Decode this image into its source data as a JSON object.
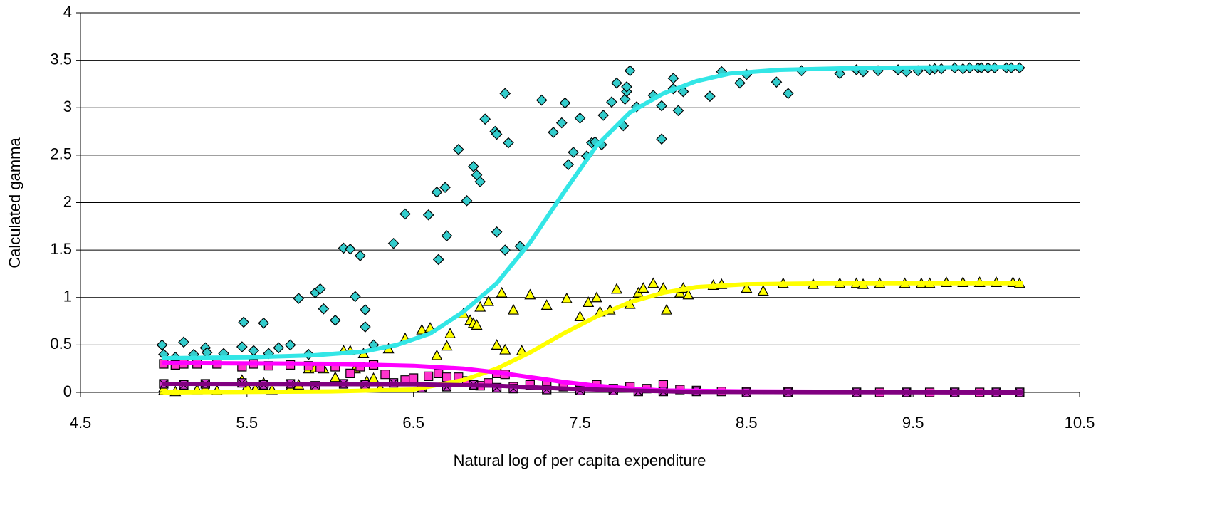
{
  "chart_data": {
    "type": "scatter",
    "x_label": "Natural log of per capita expenditure",
    "y_label": "Calculated gamma",
    "xlim": [
      4.5,
      10.5
    ],
    "xticks": [
      4.5,
      5.5,
      6.5,
      7.5,
      8.5,
      9.5,
      10.5
    ],
    "ylim": [
      0,
      4
    ],
    "yticks": [
      0,
      0.5,
      1,
      1.5,
      2,
      2.5,
      3,
      3.5,
      4
    ],
    "grid": true,
    "series": [
      {
        "color": "#33cccc",
        "marker": "diamond",
        "x": [
          4.99,
          5.0,
          5.07,
          5.12,
          5.18,
          5.25,
          5.26,
          5.36,
          5.47,
          5.48,
          5.54,
          5.6,
          5.63,
          5.69,
          5.76,
          5.81,
          5.87,
          5.91,
          5.94,
          5.96,
          6.03,
          6.08,
          6.12,
          6.15,
          6.18,
          6.21,
          6.21,
          6.26,
          6.38,
          6.45,
          6.59,
          6.64,
          6.65,
          6.69,
          6.7,
          6.77,
          6.82,
          6.86,
          6.88,
          6.9,
          6.93,
          6.99,
          7.0,
          7.0,
          7.05,
          7.05,
          7.07,
          7.14,
          7.27,
          7.34,
          7.39,
          7.41,
          7.43,
          7.46,
          7.5,
          7.54,
          7.57,
          7.59,
          7.63,
          7.64,
          7.69,
          7.72,
          7.76,
          7.77,
          7.78,
          7.78,
          7.8,
          7.84,
          7.94,
          7.99,
          7.99,
          8.06,
          8.06,
          8.09,
          8.12,
          8.28,
          8.35,
          8.46,
          8.5,
          8.68,
          8.75,
          8.83,
          9.06,
          9.16,
          9.2,
          9.29,
          9.41,
          9.46,
          9.53,
          9.6,
          9.63,
          9.67,
          9.75,
          9.8,
          9.84,
          9.89,
          9.91,
          9.95,
          9.99,
          10.06,
          10.09,
          10.14
        ],
        "values": [
          0.5,
          0.4,
          0.37,
          0.53,
          0.4,
          0.47,
          0.42,
          0.41,
          0.48,
          0.74,
          0.44,
          0.73,
          0.41,
          0.47,
          0.5,
          0.99,
          0.4,
          1.05,
          1.09,
          0.88,
          0.76,
          1.52,
          1.51,
          1.01,
          1.44,
          0.87,
          0.69,
          0.5,
          1.57,
          1.88,
          1.87,
          2.11,
          1.4,
          2.16,
          1.65,
          2.56,
          2.02,
          2.38,
          2.29,
          2.22,
          2.88,
          2.75,
          2.72,
          1.69,
          1.5,
          3.15,
          2.63,
          1.54,
          3.08,
          2.74,
          2.84,
          3.05,
          2.4,
          2.53,
          2.89,
          2.49,
          2.63,
          2.64,
          2.61,
          2.92,
          3.06,
          3.26,
          2.81,
          3.09,
          3.17,
          3.22,
          3.39,
          3.01,
          3.13,
          3.02,
          2.67,
          3.2,
          3.31,
          2.97,
          3.17,
          3.12,
          3.38,
          3.26,
          3.35,
          3.27,
          3.15,
          3.39,
          3.36,
          3.4,
          3.38,
          3.39,
          3.4,
          3.38,
          3.39,
          3.4,
          3.41,
          3.41,
          3.42,
          3.41,
          3.42,
          3.42,
          3.42,
          3.42,
          3.42,
          3.42,
          3.42,
          3.42
        ]
      },
      {
        "color": "#ffff00",
        "marker": "triangle",
        "x": [
          5.0,
          5.0,
          5.07,
          5.12,
          5.2,
          5.25,
          5.32,
          5.47,
          5.5,
          5.55,
          5.6,
          5.65,
          5.76,
          5.81,
          5.87,
          5.91,
          5.96,
          6.03,
          6.08,
          6.12,
          6.15,
          6.2,
          6.22,
          6.26,
          6.3,
          6.35,
          6.45,
          6.55,
          6.6,
          6.64,
          6.7,
          6.72,
          6.8,
          6.84,
          6.86,
          6.88,
          6.9,
          6.95,
          7.0,
          7.03,
          7.05,
          7.1,
          7.15,
          7.2,
          7.3,
          7.42,
          7.5,
          7.55,
          7.6,
          7.62,
          7.68,
          7.72,
          7.8,
          7.85,
          7.88,
          7.94,
          8.0,
          8.02,
          8.1,
          8.12,
          8.15,
          8.3,
          8.35,
          8.5,
          8.6,
          8.72,
          8.9,
          9.06,
          9.16,
          9.2,
          9.3,
          9.45,
          9.55,
          9.6,
          9.7,
          9.8,
          9.9,
          10.0,
          10.1,
          10.14
        ],
        "values": [
          0.02,
          0.05,
          0.01,
          0.06,
          0.03,
          0.05,
          0.02,
          0.13,
          0.06,
          0.04,
          0.1,
          0.03,
          0.05,
          0.08,
          0.25,
          0.26,
          0.25,
          0.16,
          0.44,
          0.44,
          0.25,
          0.41,
          0.12,
          0.15,
          0.05,
          0.46,
          0.57,
          0.66,
          0.68,
          0.39,
          0.49,
          0.62,
          0.83,
          0.76,
          0.73,
          0.71,
          0.9,
          0.96,
          0.5,
          1.05,
          0.45,
          0.87,
          0.44,
          1.03,
          0.92,
          0.99,
          0.8,
          0.95,
          1.0,
          0.85,
          0.87,
          1.09,
          0.93,
          1.05,
          1.1,
          1.15,
          1.1,
          0.87,
          1.05,
          1.1,
          1.03,
          1.13,
          1.14,
          1.1,
          1.07,
          1.15,
          1.14,
          1.15,
          1.15,
          1.14,
          1.15,
          1.15,
          1.15,
          1.15,
          1.16,
          1.16,
          1.16,
          1.16,
          1.16,
          1.15
        ]
      },
      {
        "color": "#ff33cc",
        "marker": "square",
        "x": [
          5.0,
          5.07,
          5.12,
          5.2,
          5.32,
          5.47,
          5.54,
          5.63,
          5.76,
          5.87,
          5.94,
          6.03,
          6.12,
          6.18,
          6.26,
          6.33,
          6.45,
          6.5,
          6.59,
          6.65,
          6.7,
          6.77,
          6.82,
          6.9,
          6.95,
          7.0,
          7.05,
          7.1,
          7.2,
          7.3,
          7.4,
          7.5,
          7.6,
          7.7,
          7.8,
          7.9,
          8.0,
          8.1,
          8.2,
          8.35,
          8.5,
          8.75,
          9.16,
          9.3,
          9.46,
          9.6,
          9.75,
          9.9,
          10.0,
          10.14
        ],
        "values": [
          0.3,
          0.29,
          0.3,
          0.3,
          0.3,
          0.27,
          0.3,
          0.28,
          0.29,
          0.28,
          0.26,
          0.27,
          0.2,
          0.27,
          0.29,
          0.19,
          0.13,
          0.15,
          0.17,
          0.2,
          0.16,
          0.16,
          0.12,
          0.07,
          0.1,
          0.2,
          0.19,
          0.06,
          0.08,
          0.1,
          0.06,
          0.05,
          0.08,
          0.04,
          0.06,
          0.04,
          0.08,
          0.03,
          0.02,
          0.01,
          0.01,
          0.01,
          0,
          0,
          0,
          0,
          0,
          0,
          0,
          0
        ]
      },
      {
        "color": "#cc33cc",
        "marker": "square-x",
        "x": [
          5.0,
          5.12,
          5.25,
          5.47,
          5.6,
          5.76,
          5.91,
          6.08,
          6.21,
          6.38,
          6.55,
          6.7,
          6.86,
          7.0,
          7.1,
          7.3,
          7.5,
          7.7,
          7.85,
          8.0,
          8.2,
          8.5,
          8.75,
          9.16,
          9.46,
          9.75,
          10.0,
          10.14
        ],
        "values": [
          0.09,
          0.08,
          0.09,
          0.1,
          0.08,
          0.09,
          0.07,
          0.09,
          0.08,
          0.1,
          0.05,
          0.06,
          0.08,
          0.05,
          0.04,
          0.03,
          0.02,
          0.02,
          0.01,
          0.01,
          0.01,
          0,
          0,
          0,
          0,
          0,
          0,
          0
        ]
      },
      {
        "color": "#33e6e6",
        "marker": "line",
        "x": [
          5.0,
          5.5,
          5.9,
          6.2,
          6.4,
          6.6,
          6.8,
          7.0,
          7.2,
          7.4,
          7.6,
          7.8,
          8.0,
          8.2,
          8.4,
          8.7,
          9.2,
          10.15
        ],
        "values": [
          0.36,
          0.37,
          0.39,
          0.43,
          0.5,
          0.62,
          0.85,
          1.15,
          1.58,
          2.1,
          2.6,
          2.95,
          3.15,
          3.28,
          3.36,
          3.4,
          3.42,
          3.43
        ]
      },
      {
        "color": "#ffff00",
        "marker": "line",
        "x": [
          5.0,
          6.0,
          6.5,
          6.8,
          7.0,
          7.2,
          7.4,
          7.6,
          7.8,
          8.0,
          8.2,
          8.5,
          9.0,
          10.15
        ],
        "values": [
          0,
          0.01,
          0.03,
          0.13,
          0.25,
          0.42,
          0.62,
          0.8,
          0.95,
          1.05,
          1.11,
          1.14,
          1.15,
          1.15
        ]
      },
      {
        "color": "#ff00ff",
        "marker": "line",
        "x": [
          5.0,
          6.0,
          6.5,
          6.8,
          7.0,
          7.2,
          7.4,
          7.6,
          7.8,
          8.0,
          8.5,
          10.15
        ],
        "values": [
          0.31,
          0.3,
          0.28,
          0.25,
          0.21,
          0.16,
          0.11,
          0.07,
          0.04,
          0.02,
          0.01,
          0
        ]
      },
      {
        "color": "#800080",
        "marker": "line",
        "x": [
          5.0,
          6.5,
          7.0,
          7.4,
          7.8,
          8.2,
          10.15
        ],
        "values": [
          0.09,
          0.085,
          0.07,
          0.04,
          0.02,
          0.005,
          0
        ]
      }
    ]
  }
}
